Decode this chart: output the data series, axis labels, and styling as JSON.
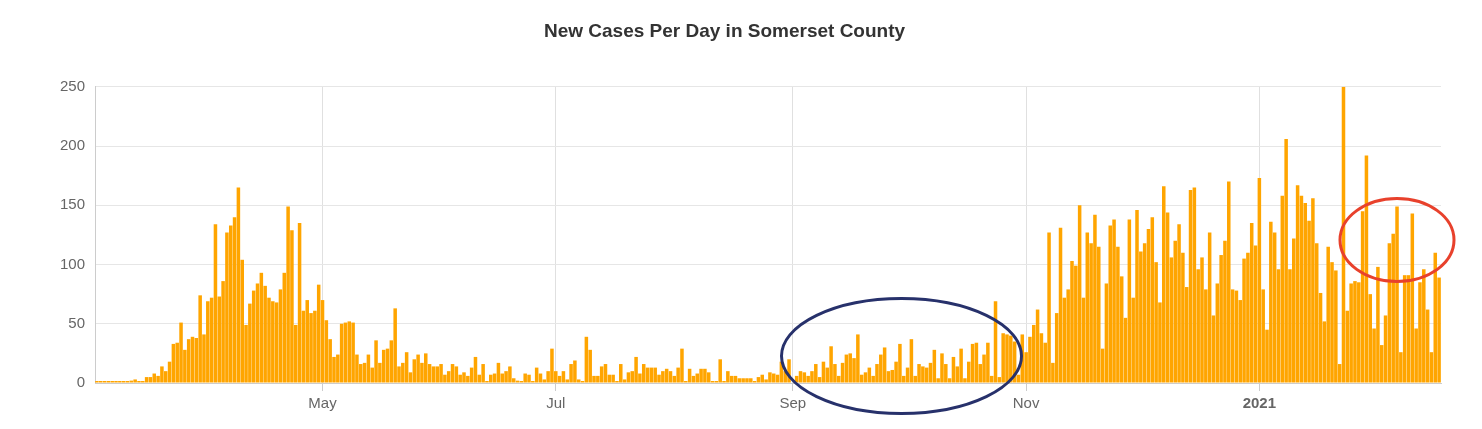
{
  "chart_data": {
    "type": "bar",
    "title": "New Cases Per Day in Somerset County",
    "color": "#ffa500",
    "grid": true,
    "ylim": [
      0,
      250
    ],
    "yticks": [
      0,
      50,
      100,
      150,
      200,
      250
    ],
    "xlim": [
      "2020-03-02T12:00",
      "2021-02-17T12:00"
    ],
    "xticks": [
      {
        "value": "2020-05-01",
        "label": "May"
      },
      {
        "value": "2020-07-01",
        "label": "Jul"
      },
      {
        "value": "2020-09-01",
        "label": "Sep"
      },
      {
        "value": "2020-11-01",
        "label": "Nov"
      },
      {
        "value": "2021-01-01",
        "label": "2021"
      }
    ],
    "x": [
      "2020-03-03",
      "2020-03-04",
      "2020-03-05",
      "2020-03-06",
      "2020-03-07",
      "2020-03-08",
      "2020-03-09",
      "2020-03-10",
      "2020-03-11",
      "2020-03-12",
      "2020-03-13",
      "2020-03-14",
      "2020-03-15",
      "2020-03-16",
      "2020-03-17",
      "2020-03-18",
      "2020-03-19",
      "2020-03-20",
      "2020-03-21",
      "2020-03-22",
      "2020-03-23",
      "2020-03-24",
      "2020-03-25",
      "2020-03-26",
      "2020-03-27",
      "2020-03-28",
      "2020-03-29",
      "2020-03-30",
      "2020-03-31",
      "2020-04-01",
      "2020-04-02",
      "2020-04-03",
      "2020-04-04",
      "2020-04-05",
      "2020-04-06",
      "2020-04-07",
      "2020-04-08",
      "2020-04-09",
      "2020-04-10",
      "2020-04-11",
      "2020-04-12",
      "2020-04-13",
      "2020-04-14",
      "2020-04-15",
      "2020-04-16",
      "2020-04-17",
      "2020-04-18",
      "2020-04-19",
      "2020-04-20",
      "2020-04-21",
      "2020-04-22",
      "2020-04-23",
      "2020-04-24",
      "2020-04-25",
      "2020-04-26",
      "2020-04-27",
      "2020-04-28",
      "2020-04-29",
      "2020-04-30",
      "2020-05-01",
      "2020-05-02",
      "2020-05-03",
      "2020-05-04",
      "2020-05-05",
      "2020-05-06",
      "2020-05-07",
      "2020-05-08",
      "2020-05-09",
      "2020-05-10",
      "2020-05-11",
      "2020-05-12",
      "2020-05-13",
      "2020-05-14",
      "2020-05-15",
      "2020-05-16",
      "2020-05-17",
      "2020-05-18",
      "2020-05-19",
      "2020-05-20",
      "2020-05-21",
      "2020-05-22",
      "2020-05-23",
      "2020-05-24",
      "2020-05-25",
      "2020-05-26",
      "2020-05-27",
      "2020-05-28",
      "2020-05-29",
      "2020-05-30",
      "2020-05-31",
      "2020-06-01",
      "2020-06-02",
      "2020-06-03",
      "2020-06-04",
      "2020-06-05",
      "2020-06-06",
      "2020-06-07",
      "2020-06-08",
      "2020-06-09",
      "2020-06-10",
      "2020-06-11",
      "2020-06-12",
      "2020-06-13",
      "2020-06-14",
      "2020-06-15",
      "2020-06-16",
      "2020-06-17",
      "2020-06-18",
      "2020-06-19",
      "2020-06-20",
      "2020-06-21",
      "2020-06-22",
      "2020-06-23",
      "2020-06-24",
      "2020-06-25",
      "2020-06-26",
      "2020-06-27",
      "2020-06-28",
      "2020-06-29",
      "2020-06-30",
      "2020-07-01",
      "2020-07-02",
      "2020-07-03",
      "2020-07-04",
      "2020-07-05",
      "2020-07-06",
      "2020-07-07",
      "2020-07-08",
      "2020-07-09",
      "2020-07-10",
      "2020-07-11",
      "2020-07-12",
      "2020-07-13",
      "2020-07-14",
      "2020-07-15",
      "2020-07-16",
      "2020-07-17",
      "2020-07-18",
      "2020-07-19",
      "2020-07-20",
      "2020-07-21",
      "2020-07-22",
      "2020-07-23",
      "2020-07-24",
      "2020-07-25",
      "2020-07-26",
      "2020-07-27",
      "2020-07-28",
      "2020-07-29",
      "2020-07-30",
      "2020-07-31",
      "2020-08-01",
      "2020-08-02",
      "2020-08-03",
      "2020-08-04",
      "2020-08-05",
      "2020-08-06",
      "2020-08-07",
      "2020-08-08",
      "2020-08-09",
      "2020-08-10",
      "2020-08-11",
      "2020-08-12",
      "2020-08-13",
      "2020-08-14",
      "2020-08-15",
      "2020-08-16",
      "2020-08-17",
      "2020-08-18",
      "2020-08-19",
      "2020-08-20",
      "2020-08-21",
      "2020-08-22",
      "2020-08-23",
      "2020-08-24",
      "2020-08-25",
      "2020-08-26",
      "2020-08-27",
      "2020-08-28",
      "2020-08-29",
      "2020-08-30",
      "2020-08-31",
      "2020-09-01",
      "2020-09-02",
      "2020-09-03",
      "2020-09-04",
      "2020-09-05",
      "2020-09-06",
      "2020-09-07",
      "2020-09-08",
      "2020-09-09",
      "2020-09-10",
      "2020-09-11",
      "2020-09-12",
      "2020-09-13",
      "2020-09-14",
      "2020-09-15",
      "2020-09-16",
      "2020-09-17",
      "2020-09-18",
      "2020-09-19",
      "2020-09-20",
      "2020-09-21",
      "2020-09-22",
      "2020-09-23",
      "2020-09-24",
      "2020-09-25",
      "2020-09-26",
      "2020-09-27",
      "2020-09-28",
      "2020-09-29",
      "2020-09-30",
      "2020-10-01",
      "2020-10-02",
      "2020-10-03",
      "2020-10-04",
      "2020-10-05",
      "2020-10-06",
      "2020-10-07",
      "2020-10-08",
      "2020-10-09",
      "2020-10-10",
      "2020-10-11",
      "2020-10-12",
      "2020-10-13",
      "2020-10-14",
      "2020-10-15",
      "2020-10-16",
      "2020-10-17",
      "2020-10-18",
      "2020-10-19",
      "2020-10-20",
      "2020-10-21",
      "2020-10-22",
      "2020-10-23",
      "2020-10-24",
      "2020-10-25",
      "2020-10-26",
      "2020-10-27",
      "2020-10-28",
      "2020-10-29",
      "2020-10-30",
      "2020-10-31",
      "2020-11-01",
      "2020-11-02",
      "2020-11-03",
      "2020-11-04",
      "2020-11-05",
      "2020-11-06",
      "2020-11-07",
      "2020-11-08",
      "2020-11-09",
      "2020-11-10",
      "2020-11-11",
      "2020-11-12",
      "2020-11-13",
      "2020-11-14",
      "2020-11-15",
      "2020-11-16",
      "2020-11-17",
      "2020-11-18",
      "2020-11-19",
      "2020-11-20",
      "2020-11-21",
      "2020-11-22",
      "2020-11-23",
      "2020-11-24",
      "2020-11-25",
      "2020-11-26",
      "2020-11-27",
      "2020-11-28",
      "2020-11-29",
      "2020-11-30",
      "2020-12-01",
      "2020-12-02",
      "2020-12-03",
      "2020-12-04",
      "2020-12-05",
      "2020-12-06",
      "2020-12-07",
      "2020-12-08",
      "2020-12-09",
      "2020-12-10",
      "2020-12-11",
      "2020-12-12",
      "2020-12-13",
      "2020-12-14",
      "2020-12-15",
      "2020-12-16",
      "2020-12-17",
      "2020-12-18",
      "2020-12-19",
      "2020-12-20",
      "2020-12-21",
      "2020-12-22",
      "2020-12-23",
      "2020-12-24",
      "2020-12-25",
      "2020-12-26",
      "2020-12-27",
      "2020-12-28",
      "2020-12-29",
      "2020-12-30",
      "2020-12-31",
      "2021-01-01",
      "2021-01-02",
      "2021-01-03",
      "2021-01-04",
      "2021-01-05",
      "2021-01-06",
      "2021-01-07",
      "2021-01-08",
      "2021-01-09",
      "2021-01-10",
      "2021-01-11",
      "2021-01-12",
      "2021-01-13",
      "2021-01-14",
      "2021-01-15",
      "2021-01-16",
      "2021-01-17",
      "2021-01-18",
      "2021-01-19",
      "2021-01-20",
      "2021-01-21",
      "2021-01-22",
      "2021-01-23",
      "2021-01-24",
      "2021-01-25",
      "2021-01-26",
      "2021-01-27",
      "2021-01-28",
      "2021-01-29",
      "2021-01-30",
      "2021-01-31",
      "2021-02-01",
      "2021-02-02",
      "2021-02-03",
      "2021-02-04",
      "2021-02-05",
      "2021-02-06",
      "2021-02-07",
      "2021-02-08",
      "2021-02-09",
      "2021-02-10",
      "2021-02-11",
      "2021-02-12",
      "2021-02-13",
      "2021-02-14",
      "2021-02-15",
      "2021-02-16",
      "2021-02-17"
    ],
    "values": [
      0,
      0,
      0,
      0,
      0,
      1,
      0,
      0,
      0,
      2,
      3,
      0,
      0,
      5,
      5,
      8,
      6,
      14,
      10,
      18,
      33,
      34,
      51,
      28,
      37,
      39,
      38,
      74,
      41,
      69,
      72,
      134,
      73,
      86,
      127,
      133,
      140,
      165,
      104,
      49,
      67,
      78,
      84,
      93,
      82,
      72,
      69,
      68,
      79,
      93,
      149,
      129,
      49,
      135,
      61,
      70,
      59,
      61,
      83,
      70,
      53,
      37,
      22,
      24,
      50,
      51,
      52,
      51,
      24,
      16,
      17,
      24,
      13,
      36,
      17,
      28,
      29,
      36,
      63,
      14,
      17,
      26,
      9,
      20,
      24,
      17,
      25,
      16,
      14,
      14,
      16,
      7,
      10,
      16,
      14,
      7,
      9,
      6,
      13,
      22,
      7,
      16,
      1,
      7,
      8,
      17,
      8,
      10,
      14,
      4,
      2,
      0,
      8,
      7,
      1,
      13,
      8,
      3,
      10,
      29,
      10,
      6,
      10,
      3,
      16,
      19,
      3,
      0,
      39,
      28,
      6,
      6,
      14,
      16,
      7,
      7,
      0,
      16,
      3,
      9,
      10,
      22,
      8,
      16,
      13,
      13,
      13,
      7,
      10,
      12,
      10,
      6,
      13,
      29,
      0,
      12,
      6,
      8,
      12,
      12,
      9,
      0,
      1,
      20,
      1,
      10,
      6,
      6,
      4,
      4,
      4,
      4,
      0,
      5,
      7,
      3,
      9,
      8,
      7,
      18,
      10,
      20,
      null,
      6,
      10,
      9,
      6,
      10,
      16,
      5,
      18,
      13,
      31,
      16,
      6,
      17,
      24,
      25,
      21,
      41,
      7,
      9,
      13,
      6,
      16,
      24,
      30,
      10,
      11,
      18,
      33,
      6,
      13,
      37,
      6,
      16,
      14,
      13,
      17,
      28,
      4,
      25,
      16,
      4,
      22,
      14,
      29,
      4,
      18,
      33,
      34,
      16,
      24,
      34,
      6,
      69,
      5,
      42,
      41,
      40,
      35,
      7,
      41,
      26,
      39,
      49,
      62,
      42,
      34,
      127,
      17,
      59,
      131,
      72,
      79,
      103,
      99,
      150,
      72,
      127,
      118,
      142,
      115,
      29,
      84,
      133,
      138,
      115,
      90,
      55,
      138,
      72,
      146,
      111,
      118,
      130,
      140,
      102,
      68,
      166,
      144,
      106,
      120,
      134,
      110,
      81,
      163,
      165,
      96,
      106,
      79,
      127,
      57,
      84,
      108,
      120,
      170,
      79,
      78,
      70,
      105,
      110,
      135,
      116,
      173,
      79,
      45,
      136,
      127,
      96,
      158,
      206,
      96,
      122,
      167,
      158,
      152,
      137,
      156,
      118,
      76,
      52,
      115,
      102,
      95,
      16,
      250,
      61,
      84,
      86,
      85,
      145,
      192,
      75,
      46,
      98,
      32,
      57,
      118,
      126,
      149,
      26,
      91,
      91,
      143,
      46,
      85,
      96,
      62,
      26,
      110,
      89
    ]
  }
}
